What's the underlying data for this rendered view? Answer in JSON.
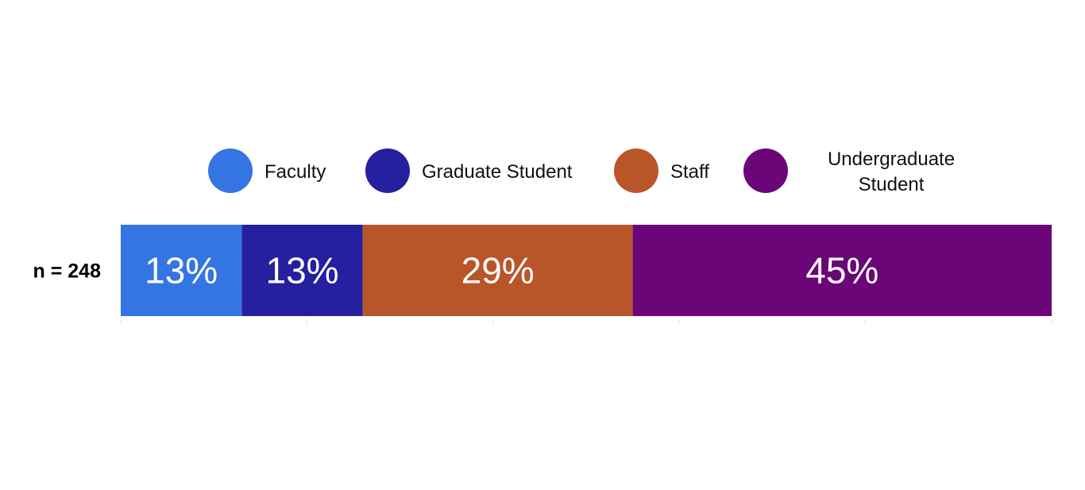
{
  "chart_data": {
    "type": "bar",
    "orientation": "horizontal",
    "stacked": true,
    "normalized_percent": true,
    "categories": [
      "n = 248"
    ],
    "series": [
      {
        "name": "Faculty",
        "values": [
          13
        ],
        "label": "13%",
        "color": "#3574e3"
      },
      {
        "name": "Graduate Student",
        "values": [
          13
        ],
        "label": "13%",
        "color": "#2420a0"
      },
      {
        "name": "Staff",
        "values": [
          29
        ],
        "label": "29%",
        "color": "#b95629"
      },
      {
        "name": "Undergraduate Student",
        "values": [
          45
        ],
        "label": "45%",
        "color": "#6a0678"
      }
    ],
    "xlim": [
      0,
      100
    ],
    "grid": false,
    "legend": {
      "position": "top",
      "items": [
        {
          "lines": [
            "Faculty"
          ],
          "color": "#3574e3"
        },
        {
          "lines": [
            "Graduate Student"
          ],
          "color": "#2420a0"
        },
        {
          "lines": [
            "Staff"
          ],
          "color": "#b95629"
        },
        {
          "lines": [
            "Undergraduate",
            "Student"
          ],
          "color": "#6a0678"
        }
      ]
    }
  }
}
